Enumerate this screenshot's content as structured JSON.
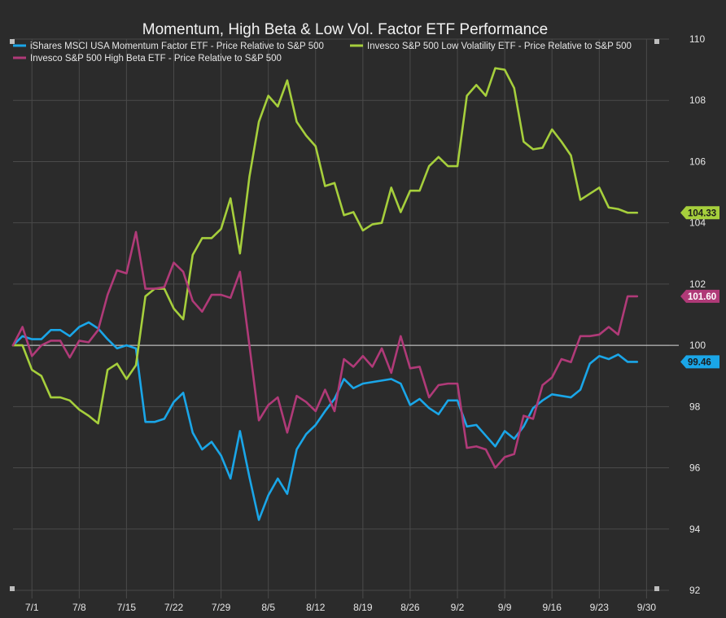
{
  "chart_data": {
    "type": "line",
    "title": "Momentum, High Beta & Low Vol. Factor ETF Performance",
    "xlabel": "",
    "ylabel": "",
    "ylim": [
      92,
      110
    ],
    "y_ticks": [
      92,
      94,
      96,
      98,
      100,
      102,
      104,
      106,
      108,
      110
    ],
    "x_ticks": [
      {
        "label": "7/1",
        "x": 2
      },
      {
        "label": "7/8",
        "x": 7
      },
      {
        "label": "7/15",
        "x": 12
      },
      {
        "label": "7/22",
        "x": 17
      },
      {
        "label": "7/29",
        "x": 22
      },
      {
        "label": "8/5",
        "x": 27
      },
      {
        "label": "8/12",
        "x": 32
      },
      {
        "label": "8/19",
        "x": 37
      },
      {
        "label": "8/26",
        "x": 42
      },
      {
        "label": "9/2",
        "x": 47
      },
      {
        "label": "9/9",
        "x": 52
      },
      {
        "label": "9/16",
        "x": 57
      },
      {
        "label": "9/23",
        "x": 62
      },
      {
        "label": "9/30",
        "x": 67
      }
    ],
    "x_range": [
      0,
      68
    ],
    "baseline": 100,
    "grid": true,
    "legend_position": "top-left",
    "series": [
      {
        "name": "iShares MSCI USA Momentum Factor ETF - Price Relative to S&P 500",
        "color": "#1aa6e8",
        "end_label": "99.46",
        "values": [
          100,
          100.3,
          100.2,
          100.2,
          100.5,
          100.5,
          100.3,
          100.6,
          100.75,
          100.55,
          100.2,
          99.9,
          100,
          99.9,
          97.5,
          97.5,
          97.6,
          98.15,
          98.45,
          97.15,
          96.6,
          96.85,
          96.4,
          95.65,
          97.2,
          95.7,
          94.3,
          95.1,
          95.65,
          95.15,
          96.6,
          97.1,
          97.4,
          97.85,
          98.25,
          98.9,
          98.6,
          98.75,
          98.8,
          98.85,
          98.9,
          98.75,
          98.05,
          98.25,
          97.95,
          97.75,
          98.2,
          98.2,
          97.35,
          97.4,
          97.05,
          96.7,
          97.2,
          96.95,
          97.35,
          97.95,
          98.2,
          98.4,
          98.35,
          98.3,
          98.55,
          99.4,
          99.65,
          99.55,
          99.7,
          99.46,
          99.46
        ]
      },
      {
        "name": "Invesco S&P 500 Low Volatility ETF - Price Relative to S&P 500",
        "color": "#a6cf3c",
        "end_label": "104.33",
        "values": [
          100,
          100,
          99.2,
          99,
          98.3,
          98.3,
          98.2,
          97.9,
          97.7,
          97.45,
          99.2,
          99.4,
          98.9,
          99.35,
          101.6,
          101.85,
          101.85,
          101.2,
          100.85,
          102.95,
          103.5,
          103.5,
          103.8,
          104.8,
          103,
          105.5,
          107.3,
          108.15,
          107.8,
          108.65,
          107.3,
          106.85,
          106.5,
          105.2,
          105.3,
          104.25,
          104.35,
          103.75,
          103.95,
          104,
          105.15,
          104.35,
          105.05,
          105.05,
          105.85,
          106.15,
          105.85,
          105.85,
          108.15,
          108.5,
          108.15,
          109.05,
          109,
          108.4,
          106.65,
          106.4,
          106.45,
          107.05,
          106.65,
          106.2,
          104.75,
          104.95,
          105.15,
          104.5,
          104.45,
          104.33,
          104.33
        ]
      },
      {
        "name": "Invesco S&P 500 High Beta ETF - Price Relative to S&P 500",
        "color": "#b03a78",
        "end_label": "101.60",
        "values": [
          100,
          100.6,
          99.65,
          100,
          100.15,
          100.15,
          99.6,
          100.15,
          100.1,
          100.5,
          101.65,
          102.45,
          102.35,
          103.7,
          101.85,
          101.85,
          101.9,
          102.7,
          102.4,
          101.45,
          101.1,
          101.65,
          101.65,
          101.55,
          102.4,
          100,
          97.55,
          98.05,
          98.3,
          97.15,
          98.35,
          98.15,
          97.85,
          98.55,
          97.85,
          99.55,
          99.3,
          99.65,
          99.3,
          99.9,
          99.1,
          100.3,
          99.25,
          99.3,
          98.3,
          98.7,
          98.75,
          98.75,
          96.65,
          96.7,
          96.6,
          96,
          96.35,
          96.45,
          97.7,
          97.6,
          98.7,
          98.95,
          99.55,
          99.45,
          100.3,
          100.3,
          100.35,
          100.6,
          100.35,
          101.6,
          101.6
        ]
      }
    ]
  }
}
